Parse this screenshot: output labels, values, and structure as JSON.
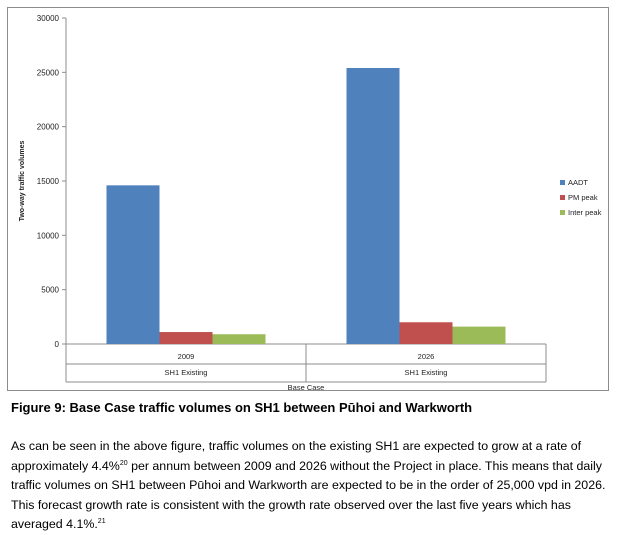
{
  "chart_data": {
    "type": "bar",
    "ylabel": "Two-way traffic volumes",
    "xlabel": "Base Case",
    "ylim": [
      0,
      30000
    ],
    "yticks": [
      0,
      5000,
      10000,
      15000,
      20000,
      25000,
      30000
    ],
    "grid": false,
    "legend_position": "right",
    "categories": [
      "2009",
      "2026"
    ],
    "category_sublabels": [
      "SH1 Existing",
      "SH1 Existing"
    ],
    "series": [
      {
        "name": "AADT",
        "color": "#4f81bd",
        "values": [
          14600,
          25400
        ]
      },
      {
        "name": "PM peak",
        "color": "#c0504d",
        "values": [
          1100,
          2000
        ]
      },
      {
        "name": "Inter peak",
        "color": "#9bbb59",
        "values": [
          900,
          1600
        ]
      }
    ]
  },
  "figure": {
    "caption": "Figure 9: Base Case traffic volumes on SH1 between Pūhoi and Warkworth"
  },
  "paragraph": {
    "p1": "As can be seen in the above figure, traffic volumes on the existing SH1 are expected to grow at a rate of approximately 4.4%",
    "fn1": "20",
    "p2": " per annum between 2009 and 2026 without the Project in place. This means that daily traffic volumes on SH1 between Pūhoi and Warkworth are expected to be in the order of 25,000 vpd in 2026. This forecast growth rate is consistent with the growth rate observed over the last five years which has averaged 4.1%.",
    "fn2": "21"
  }
}
